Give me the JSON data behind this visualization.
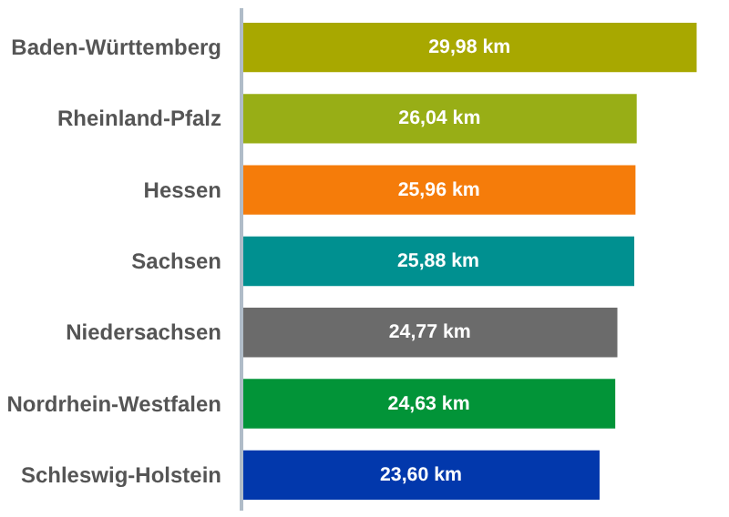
{
  "chart_data": {
    "type": "bar",
    "orientation": "horizontal",
    "categories": [
      "Baden-Württemberg",
      "Rheinland-Pfalz",
      "Hessen",
      "Sachsen",
      "Niedersachsen",
      "Nordrhein-Westfalen",
      "Schleswig-Holstein"
    ],
    "values": [
      29.98,
      26.04,
      25.96,
      25.88,
      24.77,
      24.63,
      23.6
    ],
    "value_labels": [
      "29,98 km",
      "26,04 km",
      "25,96 km",
      "25,88 km",
      "24,77 km",
      "24,63 km",
      "23,60 km"
    ],
    "colors": [
      "#a8a800",
      "#98ae16",
      "#f57c0a",
      "#009090",
      "#6b6b6b",
      "#029438",
      "#0238ac"
    ],
    "grid": false
  }
}
